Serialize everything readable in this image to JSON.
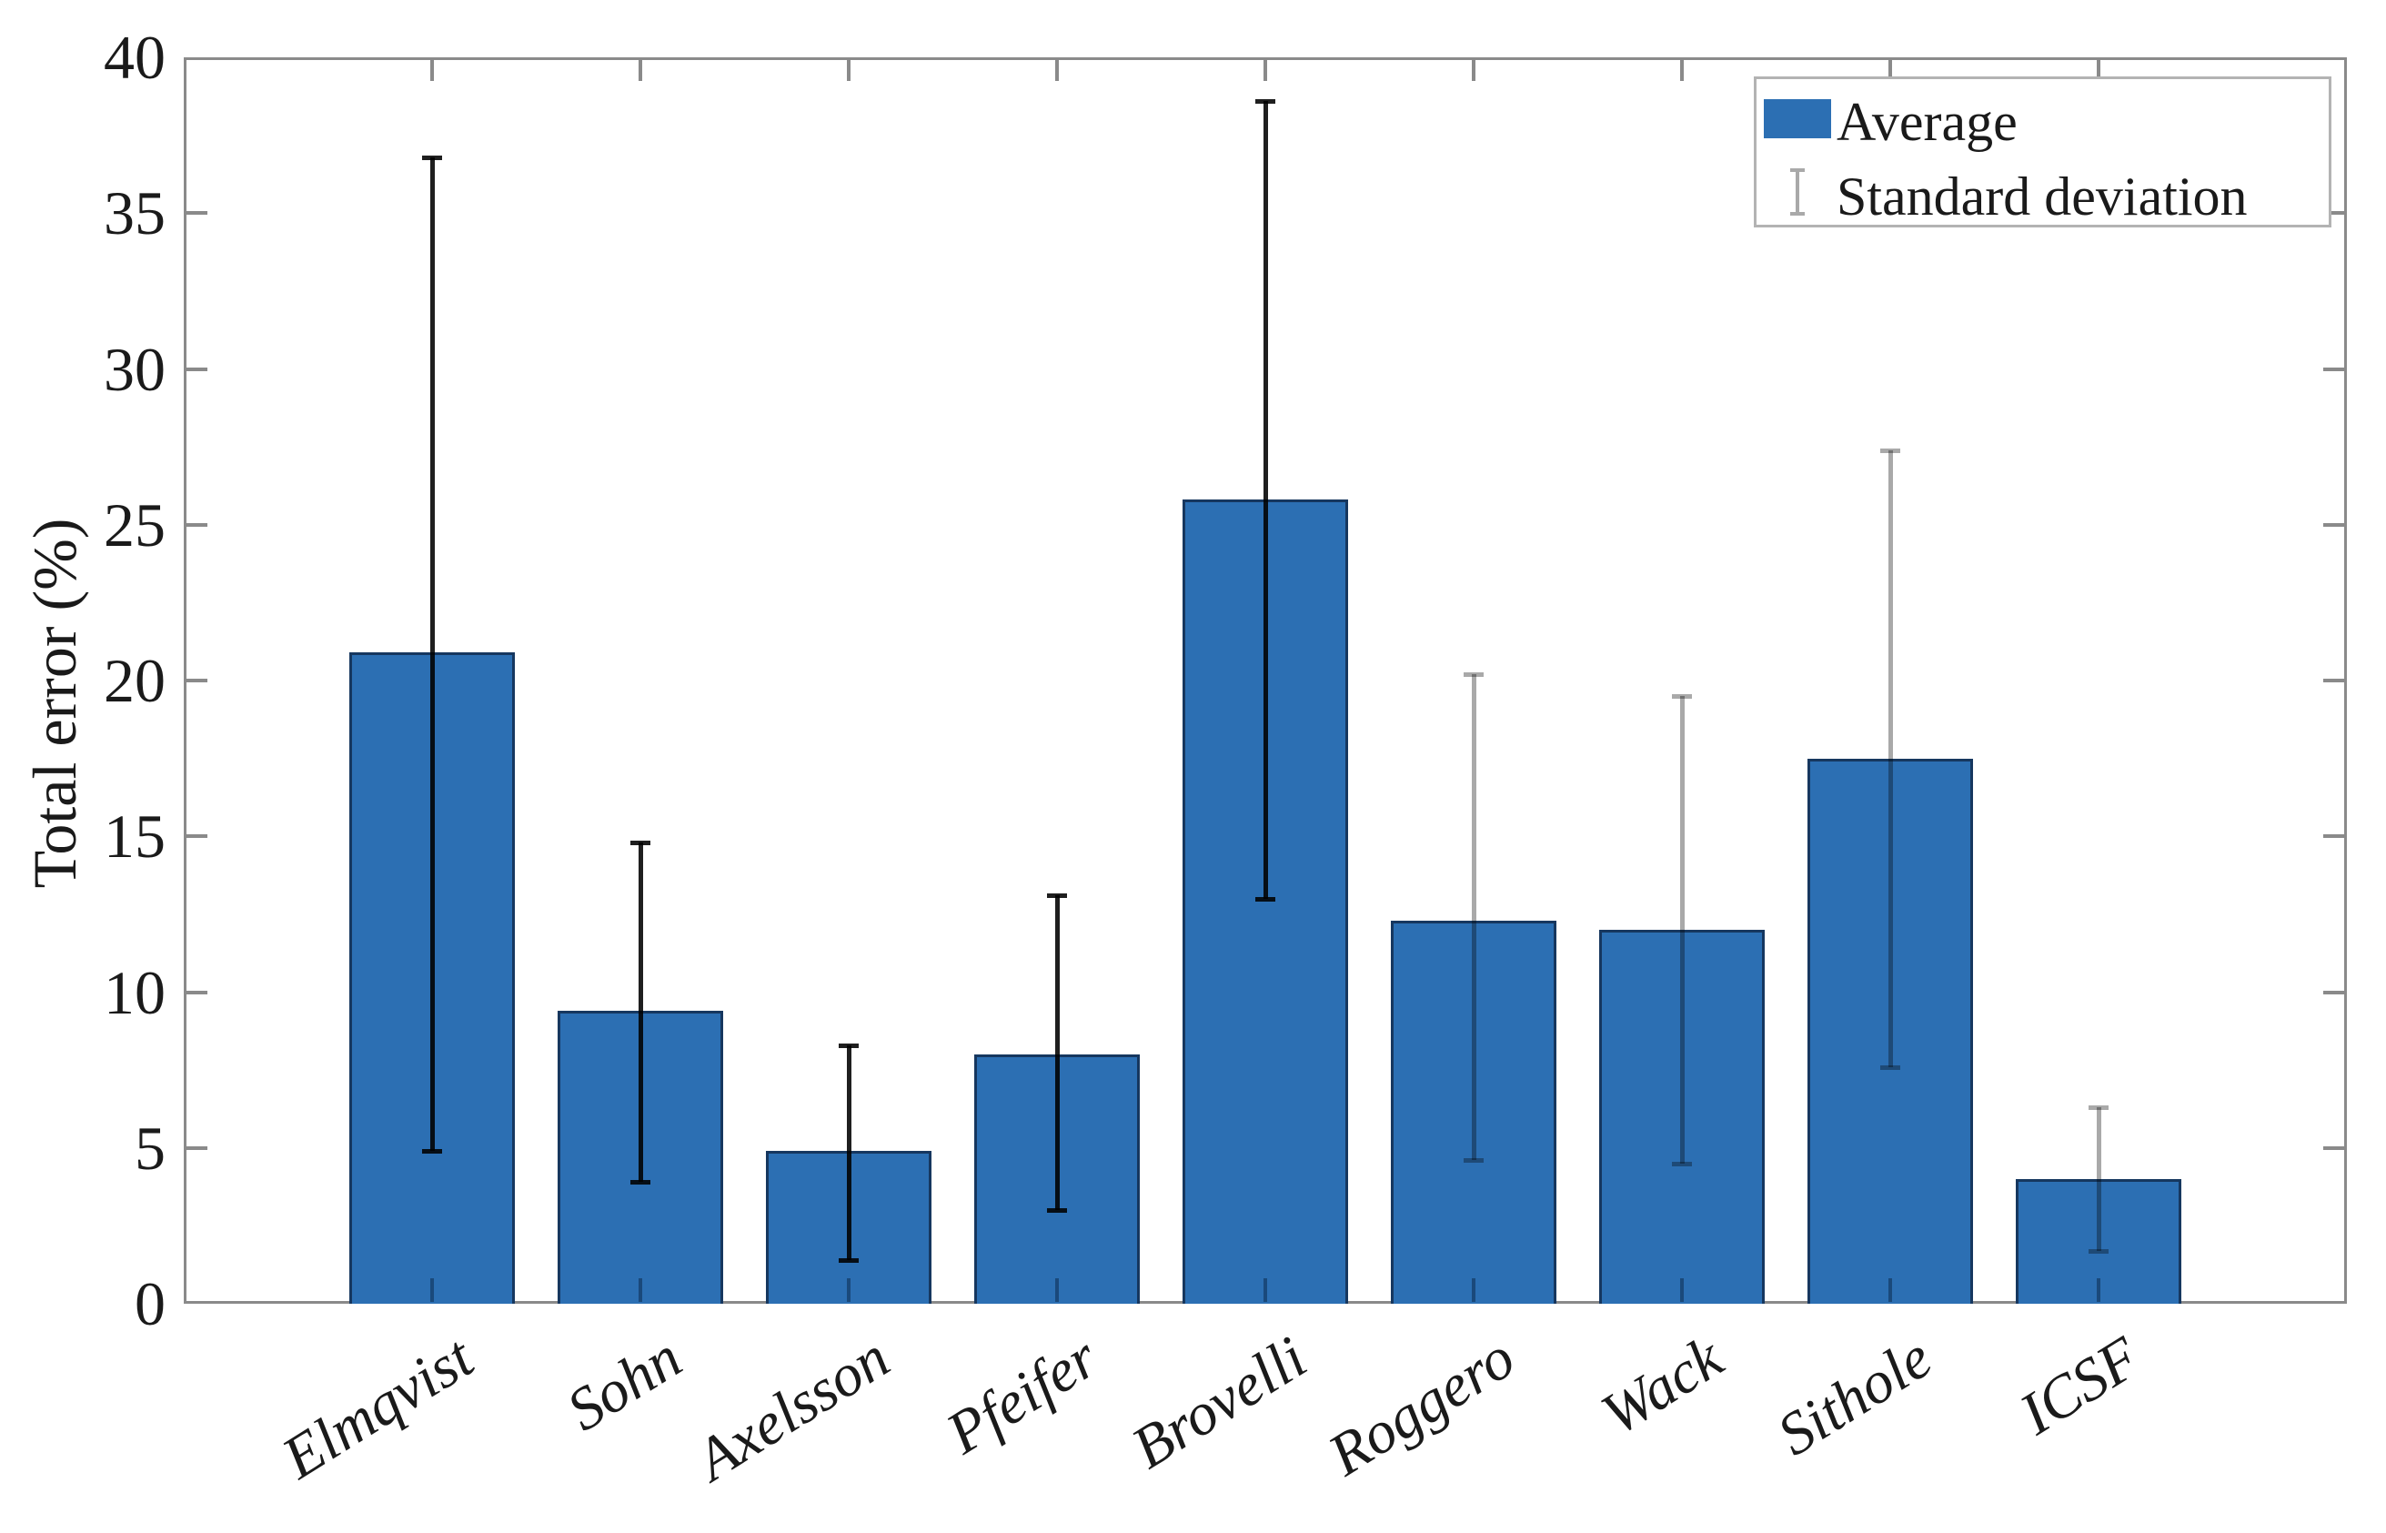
{
  "figure": {
    "background": "#ffffff"
  },
  "y_axis": {
    "label": "Total error (%)",
    "min": 0,
    "max": 40,
    "tick_step": 5
  },
  "legend": {
    "items": [
      {
        "label": "Average",
        "swatch": "bar-swatch"
      },
      {
        "label": "Standard deviation",
        "swatch": "errorbar-glyph"
      }
    ]
  },
  "colors": {
    "bar_fill": "#2c6fb3",
    "bar_edge": "#16375f",
    "errorbar_black": "#1f1f1f",
    "errorbar_gray": "#a9a9a9",
    "axis_frame": "#8a8a8a",
    "text": "#1a1a1a",
    "legend_border": "#b3b3b3"
  },
  "chart_data": {
    "type": "bar",
    "title": "",
    "xlabel": "",
    "ylabel": "Total error (%)",
    "ylim": [
      0,
      40
    ],
    "ytick_step": 5,
    "grid": false,
    "legend_position": "top-right",
    "x_tick_rotation_deg": 32,
    "categories": [
      "Elmqvist",
      "Sohn",
      "Axelsson",
      "Pfeifer",
      "Brovelli",
      "Roggero",
      "Wack",
      "Sithole",
      "ICSF"
    ],
    "series": [
      {
        "name": "Average",
        "values": [
          20.9,
          9.4,
          4.9,
          8.0,
          25.8,
          12.3,
          12.0,
          17.5,
          4.0
        ]
      }
    ],
    "error_bars": {
      "name": "Standard deviation",
      "low": [
        4.9,
        3.9,
        1.4,
        3.0,
        13.0,
        4.6,
        4.5,
        7.6,
        1.7
      ],
      "high": [
        36.8,
        14.8,
        8.3,
        13.1,
        38.6,
        20.2,
        19.5,
        27.4,
        6.3
      ],
      "colors": [
        "black",
        "black",
        "black",
        "black",
        "black",
        "gray",
        "gray",
        "gray",
        "gray"
      ]
    }
  }
}
